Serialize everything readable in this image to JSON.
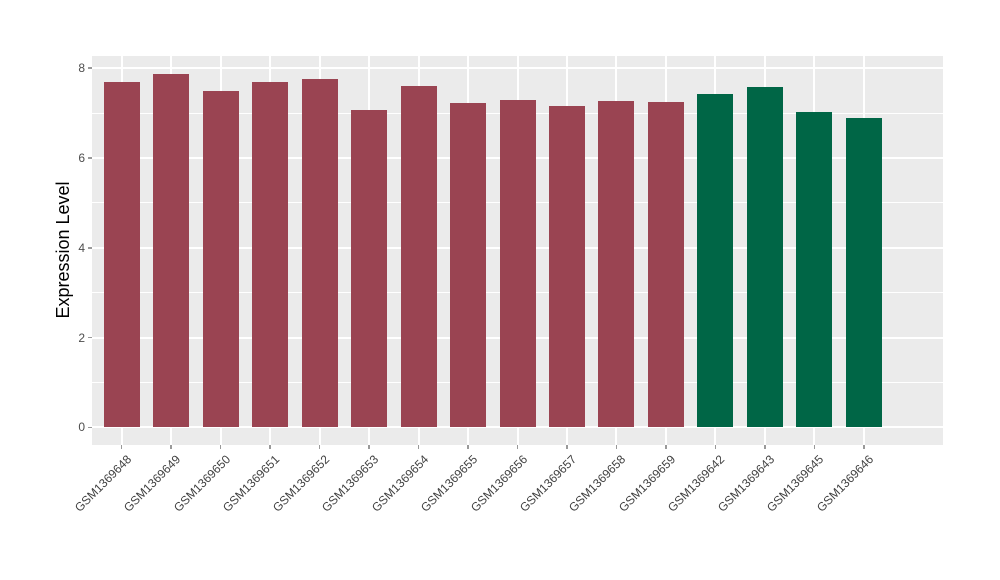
{
  "chart_data": {
    "type": "bar",
    "title": "",
    "xlabel": "",
    "ylabel": "Expression Level",
    "categories": [
      "GSM1369648",
      "GSM1369649",
      "GSM1369650",
      "GSM1369651",
      "GSM1369652",
      "GSM1369653",
      "GSM1369654",
      "GSM1369655",
      "GSM1369656",
      "GSM1369657",
      "GSM1369658",
      "GSM1369659",
      "GSM1369642",
      "GSM1369643",
      "GSM1369645",
      "GSM1369646"
    ],
    "values": [
      7.69,
      7.87,
      7.5,
      7.69,
      7.76,
      7.07,
      7.6,
      7.23,
      7.3,
      7.16,
      7.27,
      7.25,
      7.42,
      7.58,
      7.02,
      6.9
    ],
    "bar_colors": [
      "#9A4452",
      "#9A4452",
      "#9A4452",
      "#9A4452",
      "#9A4452",
      "#9A4452",
      "#9A4452",
      "#9A4452",
      "#9A4452",
      "#9A4452",
      "#9A4452",
      "#9A4452",
      "#006646",
      "#006646",
      "#006646",
      "#006646"
    ],
    "palette": {
      "left_group": "#9A4452",
      "right_group": "#006646"
    },
    "yticks": [
      0,
      2,
      4,
      6,
      8
    ],
    "yminor": [
      1,
      3,
      5,
      7
    ],
    "ylim": [
      -0.39,
      8.27
    ],
    "grid": true,
    "legend_position": "none",
    "panel_bg": "#EBEBEB",
    "grid_color": "#FFFFFF"
  }
}
